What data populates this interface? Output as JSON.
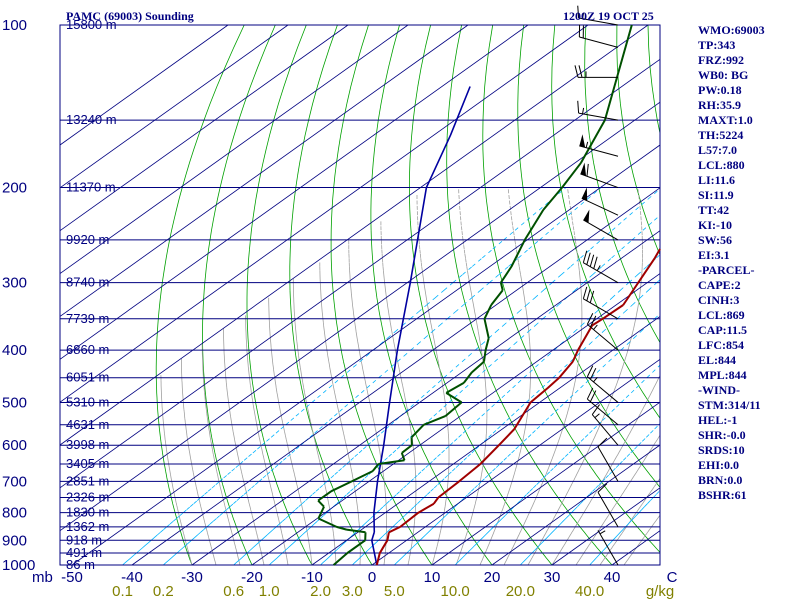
{
  "header": {
    "station": "PAMC (69003) Sounding",
    "time": "1200Z 19 OCT 25"
  },
  "colors": {
    "isobar": "#000080",
    "skewT": "#000080",
    "dryAdiabat": "#00a000",
    "moistAdiabat": "#a0a0a0",
    "mixingRatio": "#00b4ff",
    "temperature": "#a00000",
    "dewpoint": "#005000",
    "parcel": "#0000a0",
    "text": "#000080",
    "ticks": "#808000",
    "wind": "#000000"
  },
  "chart_data": {
    "type": "skew-t",
    "pressure_levels": [
      {
        "p": 100,
        "label": "100",
        "height": "15800 m"
      },
      {
        "p": 150,
        "label": "",
        "height": "13240 m"
      },
      {
        "p": 200,
        "label": "200",
        "height": "11370 m"
      },
      {
        "p": 250,
        "label": "",
        "height": "9920 m"
      },
      {
        "p": 300,
        "label": "300",
        "height": "8740 m"
      },
      {
        "p": 350,
        "label": "",
        "height": "7739 m"
      },
      {
        "p": 400,
        "label": "400",
        "height": "6860 m"
      },
      {
        "p": 450,
        "label": "",
        "height": "6051 m"
      },
      {
        "p": 500,
        "label": "500",
        "height": "5310 m"
      },
      {
        "p": 550,
        "label": "",
        "height": "4631 m"
      },
      {
        "p": 600,
        "label": "600",
        "height": "3998 m"
      },
      {
        "p": 650,
        "label": "",
        "height": "3405 m"
      },
      {
        "p": 700,
        "label": "700",
        "height": "2851 m"
      },
      {
        "p": 750,
        "label": "",
        "height": "2326 m"
      },
      {
        "p": 800,
        "label": "800",
        "height": "1830 m"
      },
      {
        "p": 850,
        "label": "",
        "height": "1362 m"
      },
      {
        "p": 900,
        "label": "900",
        "height": "918 m"
      },
      {
        "p": 950,
        "label": "",
        "height": "491 m"
      },
      {
        "p": 1000,
        "label": "1000",
        "height": "86 m"
      }
    ],
    "temp_axis_label": "mb",
    "temp_ticks": [
      {
        "t": -50,
        "label": "-50"
      },
      {
        "t": -40,
        "label": "-40"
      },
      {
        "t": -30,
        "label": "-30"
      },
      {
        "t": -20,
        "label": "-20"
      },
      {
        "t": -10,
        "label": "-10"
      },
      {
        "t": 0,
        "label": "0"
      },
      {
        "t": 10,
        "label": "10"
      },
      {
        "t": 20,
        "label": "20"
      },
      {
        "t": 30,
        "label": "30"
      },
      {
        "t": 40,
        "label": "40"
      },
      {
        "t": 50,
        "label": "C"
      }
    ],
    "mixing_ratio_unit": "g/kg",
    "mixing_ratios": [
      {
        "w": 0.1,
        "label": "0.1"
      },
      {
        "w": 0.2,
        "label": "0.2"
      },
      {
        "w": 0.6,
        "label": "0.6"
      },
      {
        "w": 1.0,
        "label": "1.0"
      },
      {
        "w": 2.0,
        "label": "2.0"
      },
      {
        "w": 3.0,
        "label": "3.0"
      },
      {
        "w": 5.0,
        "label": "5.0"
      },
      {
        "w": 10.0,
        "label": "10.0"
      },
      {
        "w": 20.0,
        "label": "20.0"
      },
      {
        "w": 40.0,
        "label": "40.0"
      }
    ],
    "temperature": [
      [
        1000,
        0.8
      ],
      [
        950,
        -1.5
      ],
      [
        900,
        -3.2
      ],
      [
        870,
        -4.8
      ],
      [
        850,
        -4.2
      ],
      [
        800,
        -4.5
      ],
      [
        770,
        -4.0
      ],
      [
        750,
        -4.7
      ],
      [
        700,
        -5.0
      ],
      [
        650,
        -5.5
      ],
      [
        600,
        -6.8
      ],
      [
        560,
        -8.0
      ],
      [
        500,
        -11.5
      ],
      [
        470,
        -12.0
      ],
      [
        450,
        -12.5
      ],
      [
        420,
        -14.0
      ],
      [
        400,
        -15.8
      ],
      [
        360,
        -19.2
      ],
      [
        350,
        -19.0
      ],
      [
        330,
        -18.8
      ],
      [
        300,
        -21.5
      ],
      [
        270,
        -24.5
      ],
      [
        250,
        -27.0
      ],
      [
        220,
        -29.0
      ],
      [
        200,
        -29.5
      ],
      [
        170,
        -33.5
      ],
      [
        150,
        -34.8
      ],
      [
        130,
        -37.5
      ],
      [
        100,
        -40.8
      ]
    ],
    "dewpoint": [
      [
        1000,
        -6.4
      ],
      [
        950,
        -6.9
      ],
      [
        900,
        -6.9
      ],
      [
        870,
        -8.7
      ],
      [
        860,
        -12.5
      ],
      [
        850,
        -14.8
      ],
      [
        820,
        -19.8
      ],
      [
        780,
        -21.6
      ],
      [
        760,
        -24.0
      ],
      [
        730,
        -24.0
      ],
      [
        700,
        -22.9
      ],
      [
        670,
        -21.8
      ],
      [
        650,
        -22.5
      ],
      [
        640,
        -19.0
      ],
      [
        620,
        -21.2
      ],
      [
        600,
        -21.3
      ],
      [
        580,
        -23.2
      ],
      [
        550,
        -24.1
      ],
      [
        530,
        -22.5
      ],
      [
        500,
        -23.0
      ],
      [
        480,
        -27.8
      ],
      [
        460,
        -27.2
      ],
      [
        440,
        -28.3
      ],
      [
        420,
        -28.8
      ],
      [
        400,
        -31.2
      ],
      [
        380,
        -33.5
      ],
      [
        350,
        -38.7
      ],
      [
        330,
        -40.8
      ],
      [
        310,
        -42.3
      ],
      [
        300,
        -44.4
      ],
      [
        280,
        -46.4
      ],
      [
        250,
        -50.4
      ],
      [
        220,
        -54.3
      ],
      [
        200,
        -56.4
      ],
      [
        180,
        -59.0
      ],
      [
        150,
        -65.0
      ],
      [
        100,
        -82.7
      ]
    ],
    "parcel": [
      [
        1000,
        0.8
      ],
      [
        900,
        -5.8
      ],
      [
        869,
        -7.3
      ],
      [
        800,
        -11.9
      ],
      [
        700,
        -18.6
      ],
      [
        600,
        -26.0
      ],
      [
        500,
        -35.0
      ],
      [
        400,
        -45.9
      ],
      [
        300,
        -59.5
      ],
      [
        200,
        -79.0
      ],
      [
        160,
        -87.2
      ],
      [
        130,
        -95.3
      ]
    ],
    "wind_barbs": [
      {
        "p": 100,
        "dir": 280,
        "spd": 15
      },
      {
        "p": 110,
        "dir": 285,
        "spd": 20
      },
      {
        "p": 125,
        "dir": 270,
        "spd": 25
      },
      {
        "p": 150,
        "dir": 280,
        "spd": 15
      },
      {
        "p": 175,
        "dir": 285,
        "spd": 55
      },
      {
        "p": 200,
        "dir": 290,
        "spd": 60
      },
      {
        "p": 225,
        "dir": 295,
        "spd": 50
      },
      {
        "p": 250,
        "dir": 300,
        "spd": 50
      },
      {
        "p": 300,
        "dir": 300,
        "spd": 45
      },
      {
        "p": 350,
        "dir": 300,
        "spd": 30
      },
      {
        "p": 400,
        "dir": 310,
        "spd": 25
      },
      {
        "p": 500,
        "dir": 310,
        "spd": 25
      },
      {
        "p": 550,
        "dir": 310,
        "spd": 20
      },
      {
        "p": 600,
        "dir": 320,
        "spd": 15
      },
      {
        "p": 700,
        "dir": 330,
        "spd": 10
      },
      {
        "p": 850,
        "dir": 330,
        "spd": 10
      },
      {
        "p": 1000,
        "dir": 330,
        "spd": 5
      }
    ]
  },
  "indices": [
    "WMO:69003",
    "TP:343",
    "FRZ:992",
    "WB0: BG",
    "PW:0.18",
    "RH:35.9",
    "MAXT:1.0",
    "TH:5224",
    "L57:7.0",
    "LCL:880",
    "LI:11.6",
    "SI:11.9",
    "TT:42",
    "KI:-10",
    "SW:56",
    "EI:3.1",
    "-PARCEL-",
    "CAPE:2",
    "CINH:3",
    "LCL:869",
    "CAP:11.5",
    "LFC:854",
    "EL:844",
    "MPL:844",
    "-WIND-",
    "STM:314/11",
    "HEL:-1",
    "SHR:-0.0",
    "SRDS:10",
    "EHI:0.0",
    "BRN:0.0",
    "BSHR:61"
  ]
}
